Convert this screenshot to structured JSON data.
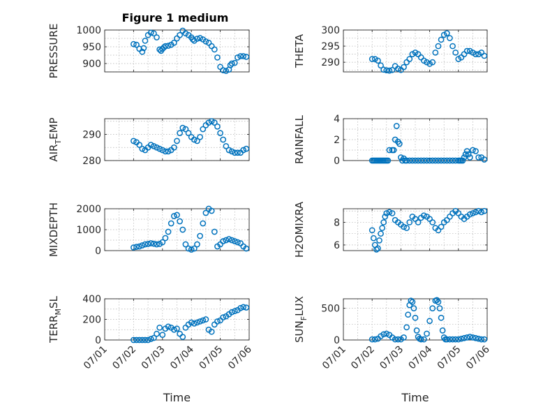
{
  "figure": {
    "title": "Figure 1 medium"
  },
  "colors": {
    "series": "#0072BD",
    "axes": "#262626",
    "grid": "#b0b0b0"
  },
  "chart_data": [
    {
      "type": "scatter",
      "ylabel": "PRESSURE",
      "ylim": [
        875,
        1000
      ],
      "yticks": [
        900,
        950,
        1000
      ],
      "ytick_labels": [
        "900",
        "950",
        "1000"
      ],
      "xlim": [
        0,
        5
      ],
      "xtick_labels": [],
      "xlabel": "",
      "grid": true,
      "x": [
        1,
        1.1,
        1.2,
        1.3,
        1.35,
        1.4,
        1.5,
        1.6,
        1.7,
        1.8,
        1.9,
        1.95,
        2,
        2.05,
        2.1,
        2.2,
        2.3,
        2.4,
        2.5,
        2.6,
        2.7,
        2.8,
        2.9,
        3,
        3.05,
        3.1,
        3.2,
        3.3,
        3.4,
        3.5,
        3.6,
        3.7,
        3.8,
        3.9,
        4,
        4.1,
        4.2,
        4.3,
        4.35,
        4.4,
        4.5,
        4.6,
        4.7,
        4.8,
        4.9
      ],
      "y": [
        958,
        956,
        944,
        935,
        946,
        968,
        985,
        992,
        990,
        978,
        942,
        938,
        944,
        948,
        952,
        953,
        956,
        962,
        975,
        985,
        998,
        990,
        985,
        978,
        972,
        968,
        974,
        976,
        972,
        966,
        962,
        952,
        942,
        918,
        890,
        880,
        878,
        882,
        895,
        900,
        902,
        918,
        922,
        922,
        920
      ]
    },
    {
      "type": "scatter",
      "ylabel": "THETA",
      "ylim": [
        287,
        300
      ],
      "yticks": [
        290,
        295,
        300
      ],
      "ytick_labels": [
        "290",
        "295",
        "300"
      ],
      "xlim": [
        0,
        5
      ],
      "xtick_labels": [],
      "xlabel": "",
      "grid": true,
      "x": [
        1,
        1.1,
        1.2,
        1.3,
        1.4,
        1.5,
        1.6,
        1.7,
        1.8,
        1.9,
        2,
        2.1,
        2.2,
        2.3,
        2.4,
        2.5,
        2.6,
        2.7,
        2.8,
        2.9,
        3,
        3.1,
        3.2,
        3.3,
        3.4,
        3.5,
        3.6,
        3.7,
        3.8,
        3.9,
        4,
        4.1,
        4.2,
        4.3,
        4.4,
        4.5,
        4.6,
        4.7,
        4.8,
        4.9
      ],
      "y": [
        291,
        291,
        290.5,
        289,
        287.7,
        287.5,
        287.4,
        287.6,
        288.8,
        288,
        287.6,
        288.5,
        290,
        291,
        292.5,
        293,
        292.5,
        291.5,
        290.5,
        290,
        289.5,
        290,
        293,
        295,
        297,
        298.5,
        299,
        297.5,
        295,
        293,
        291,
        291.5,
        292.5,
        293.5,
        293.5,
        293,
        292.5,
        292.5,
        293,
        292
      ]
    },
    {
      "type": "scatter",
      "ylabel": "AIR_TEMP",
      "ylim": [
        280,
        296
      ],
      "yticks": [
        280,
        290
      ],
      "ytick_labels": [
        "280",
        "290"
      ],
      "xlim": [
        0,
        5
      ],
      "xtick_labels": [],
      "xlabel": "",
      "grid": true,
      "x": [
        1,
        1.1,
        1.2,
        1.3,
        1.4,
        1.5,
        1.6,
        1.7,
        1.8,
        1.9,
        2,
        2.1,
        2.2,
        2.3,
        2.4,
        2.5,
        2.6,
        2.7,
        2.8,
        2.9,
        3,
        3.1,
        3.2,
        3.3,
        3.4,
        3.5,
        3.6,
        3.7,
        3.8,
        3.9,
        4,
        4.1,
        4.2,
        4.3,
        4.4,
        4.5,
        4.6,
        4.7,
        4.8,
        4.9
      ],
      "y": [
        287.5,
        287,
        286,
        284.5,
        284,
        285,
        286,
        285.5,
        285,
        284.5,
        284,
        283.5,
        283.5,
        284,
        285,
        287.5,
        290.5,
        292.5,
        292,
        290.5,
        289,
        288,
        287.5,
        289,
        292,
        293.5,
        294.5,
        295,
        294.5,
        293,
        290.5,
        288,
        285.5,
        284,
        283.5,
        283,
        283,
        283,
        284,
        284.5
      ]
    },
    {
      "type": "scatter",
      "ylabel": "RAINFALL",
      "ylim": [
        0,
        4
      ],
      "yticks": [
        0,
        2,
        4
      ],
      "ytick_labels": [
        "0",
        "2",
        "4"
      ],
      "xlim": [
        0,
        5
      ],
      "xtick_labels": [],
      "xlabel": "",
      "grid": true,
      "x": [
        1,
        1.05,
        1.1,
        1.15,
        1.2,
        1.25,
        1.3,
        1.35,
        1.4,
        1.45,
        1.5,
        1.55,
        1.6,
        1.7,
        1.75,
        1.8,
        1.85,
        1.9,
        1.95,
        2,
        2.05,
        2.1,
        2.15,
        2.2,
        2.3,
        2.4,
        2.5,
        2.6,
        2.7,
        2.8,
        2.9,
        3,
        3.1,
        3.2,
        3.3,
        3.4,
        3.5,
        3.6,
        3.7,
        3.8,
        3.9,
        4,
        4.05,
        4.1,
        4.15,
        4.2,
        4.25,
        4.3,
        4.35,
        4.4,
        4.5,
        4.6,
        4.7,
        4.8,
        4.9
      ],
      "y": [
        0,
        0,
        0,
        0,
        0,
        0,
        0,
        0,
        0,
        0,
        0,
        0,
        1,
        1,
        1,
        2,
        3.3,
        1.8,
        1.6,
        0.3,
        0,
        0.2,
        0,
        0,
        0,
        0,
        0,
        0,
        0,
        0,
        0,
        0,
        0,
        0,
        0,
        0,
        0,
        0,
        0,
        0,
        0,
        0,
        0,
        0,
        0,
        0.3,
        0.6,
        0.9,
        0.6,
        0.3,
        1,
        0.9,
        0.3,
        0.3,
        0.1
      ]
    },
    {
      "type": "scatter",
      "ylabel": "MIXDEPTH",
      "ylim": [
        0,
        2000
      ],
      "yticks": [
        0,
        1000,
        2000
      ],
      "ytick_labels": [
        "0",
        "1000",
        "2000"
      ],
      "xlim": [
        0,
        5
      ],
      "xtick_labels": [],
      "xlabel": "",
      "grid": true,
      "x": [
        1,
        1.1,
        1.2,
        1.3,
        1.4,
        1.5,
        1.6,
        1.7,
        1.8,
        1.9,
        2,
        2.1,
        2.2,
        2.3,
        2.4,
        2.5,
        2.6,
        2.7,
        2.8,
        2.9,
        3,
        3.1,
        3.2,
        3.3,
        3.4,
        3.5,
        3.6,
        3.7,
        3.8,
        3.9,
        4,
        4.1,
        4.2,
        4.3,
        4.4,
        4.5,
        4.6,
        4.7,
        4.8,
        4.9
      ],
      "y": [
        150,
        180,
        200,
        250,
        300,
        320,
        350,
        330,
        300,
        320,
        400,
        600,
        900,
        1300,
        1650,
        1700,
        1400,
        1000,
        300,
        100,
        50,
        100,
        300,
        700,
        1300,
        1800,
        2000,
        1900,
        900,
        200,
        300,
        450,
        500,
        550,
        500,
        450,
        400,
        350,
        200,
        100
      ]
    },
    {
      "type": "scatter",
      "ylabel": "H2OMIXRA",
      "ylim": [
        5.5,
        9.2
      ],
      "yticks": [
        6,
        8
      ],
      "ytick_labels": [
        "6",
        "8"
      ],
      "xlim": [
        0,
        5
      ],
      "xtick_labels": [],
      "xlabel": "",
      "grid": true,
      "x": [
        1,
        1.05,
        1.1,
        1.15,
        1.2,
        1.25,
        1.3,
        1.35,
        1.4,
        1.45,
        1.5,
        1.6,
        1.7,
        1.8,
        1.9,
        2,
        2.1,
        2.2,
        2.3,
        2.4,
        2.5,
        2.6,
        2.7,
        2.8,
        2.9,
        3,
        3.1,
        3.2,
        3.3,
        3.4,
        3.5,
        3.6,
        3.7,
        3.8,
        3.9,
        4,
        4.1,
        4.2,
        4.3,
        4.4,
        4.5,
        4.6,
        4.7,
        4.8,
        4.9
      ],
      "y": [
        7.3,
        6.6,
        6,
        5.6,
        5.7,
        6.4,
        7,
        7.5,
        8,
        8.5,
        8.8,
        8.9,
        8.8,
        8.2,
        8,
        7.8,
        7.6,
        7.5,
        8,
        8.5,
        8.3,
        8,
        8.4,
        8.6,
        8.5,
        8.3,
        8,
        7.5,
        7.3,
        7.6,
        8,
        8.2,
        8.5,
        8.8,
        9,
        8.8,
        8.5,
        8.3,
        8.5,
        8.7,
        8.8,
        8.9,
        9,
        8.9,
        9
      ]
    },
    {
      "type": "scatter",
      "ylabel": "TERR_MSL",
      "ylim": [
        0,
        400
      ],
      "yticks": [
        0,
        200,
        400
      ],
      "ytick_labels": [
        "0",
        "200",
        "400"
      ],
      "xlim": [
        0,
        5
      ],
      "xtick_labels": [
        "07/01",
        "07/02",
        "07/03",
        "07/04",
        "07/05",
        "07/06"
      ],
      "xlabel": "Time",
      "grid": true,
      "x": [
        1,
        1.1,
        1.2,
        1.3,
        1.4,
        1.5,
        1.6,
        1.7,
        1.8,
        1.9,
        2,
        2.1,
        2.2,
        2.3,
        2.4,
        2.5,
        2.6,
        2.7,
        2.8,
        2.9,
        3,
        3.1,
        3.2,
        3.3,
        3.4,
        3.5,
        3.6,
        3.7,
        3.8,
        3.9,
        4,
        4.1,
        4.2,
        4.3,
        4.4,
        4.5,
        4.6,
        4.7,
        4.8,
        4.9
      ],
      "y": [
        0,
        0,
        0,
        0,
        0,
        0,
        10,
        20,
        60,
        120,
        50,
        110,
        130,
        120,
        100,
        110,
        60,
        30,
        120,
        150,
        170,
        160,
        170,
        180,
        190,
        200,
        100,
        80,
        150,
        180,
        190,
        220,
        230,
        250,
        270,
        280,
        290,
        310,
        320,
        315
      ]
    },
    {
      "type": "scatter",
      "ylabel": "SUN_FLUX",
      "ylim": [
        0,
        650
      ],
      "yticks": [
        0,
        500
      ],
      "ytick_labels": [
        "0",
        "500"
      ],
      "xlim": [
        0,
        5
      ],
      "xtick_labels": [
        "07/01",
        "07/02",
        "07/03",
        "07/04",
        "07/05",
        "07/06"
      ],
      "xlabel": "Time",
      "grid": true,
      "x": [
        1,
        1.1,
        1.2,
        1.3,
        1.4,
        1.5,
        1.6,
        1.7,
        1.8,
        1.9,
        2,
        2.1,
        2.2,
        2.25,
        2.3,
        2.35,
        2.4,
        2.45,
        2.5,
        2.55,
        2.6,
        2.65,
        2.7,
        2.8,
        2.9,
        3,
        3.1,
        3.2,
        3.25,
        3.3,
        3.35,
        3.4,
        3.45,
        3.5,
        3.55,
        3.6,
        3.7,
        3.8,
        3.9,
        4,
        4.1,
        4.2,
        4.3,
        4.4,
        4.5,
        4.6,
        4.7,
        4.8,
        4.9
      ],
      "y": [
        10,
        10,
        20,
        60,
        90,
        100,
        80,
        40,
        10,
        10,
        10,
        40,
        200,
        400,
        550,
        620,
        600,
        500,
        350,
        150,
        50,
        20,
        10,
        10,
        100,
        300,
        500,
        620,
        630,
        600,
        500,
        350,
        150,
        40,
        10,
        10,
        10,
        10,
        10,
        10,
        20,
        30,
        40,
        50,
        40,
        30,
        20,
        10,
        10
      ]
    }
  ]
}
